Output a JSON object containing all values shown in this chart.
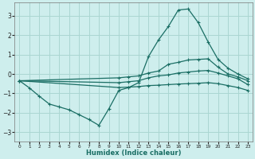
{
  "title": "",
  "xlabel": "Humidex (Indice chaleur)",
  "bg_color": "#ceeeed",
  "grid_color": "#aad6d2",
  "line_color": "#1a6e64",
  "xlim": [
    -0.5,
    23.5
  ],
  "ylim": [
    -3.5,
    3.7
  ],
  "yticks": [
    -3,
    -2,
    -1,
    0,
    1,
    2,
    3
  ],
  "xticks": [
    0,
    1,
    2,
    3,
    4,
    5,
    6,
    7,
    8,
    9,
    10,
    11,
    12,
    13,
    14,
    15,
    16,
    17,
    18,
    19,
    20,
    21,
    22,
    23
  ],
  "line1_x": [
    0,
    1,
    2,
    3,
    4,
    5,
    6,
    7,
    8,
    9,
    10,
    11,
    12,
    13,
    14,
    15,
    16,
    17,
    18,
    19,
    20,
    21,
    22,
    23
  ],
  "line1_y": [
    -0.35,
    -0.72,
    -1.15,
    -1.55,
    -1.7,
    -1.85,
    -2.1,
    -2.35,
    -2.65,
    -1.8,
    -0.85,
    -0.7,
    -0.45,
    0.9,
    1.75,
    2.45,
    3.3,
    3.35,
    2.65,
    1.65,
    0.75,
    0.3,
    0.0,
    -0.25
  ],
  "line2_x": [
    0,
    10,
    11,
    12,
    13,
    14,
    15,
    16,
    17,
    18,
    19,
    20,
    21,
    22,
    23
  ],
  "line2_y": [
    -0.35,
    -0.2,
    -0.15,
    -0.1,
    0.05,
    0.15,
    0.5,
    0.6,
    0.72,
    0.75,
    0.78,
    0.35,
    0.0,
    -0.15,
    -0.35
  ],
  "line3_x": [
    0,
    10,
    11,
    12,
    13,
    14,
    15,
    16,
    17,
    18,
    19,
    20,
    21,
    22,
    23
  ],
  "line3_y": [
    -0.35,
    -0.45,
    -0.4,
    -0.35,
    -0.2,
    -0.1,
    -0.05,
    0.05,
    0.1,
    0.15,
    0.18,
    0.05,
    -0.1,
    -0.25,
    -0.55
  ],
  "line4_x": [
    0,
    10,
    11,
    12,
    13,
    14,
    15,
    16,
    17,
    18,
    19,
    20,
    21,
    22,
    23
  ],
  "line4_y": [
    -0.35,
    -0.7,
    -0.68,
    -0.65,
    -0.6,
    -0.58,
    -0.55,
    -0.52,
    -0.5,
    -0.48,
    -0.45,
    -0.5,
    -0.6,
    -0.7,
    -0.85
  ],
  "marker": "+"
}
